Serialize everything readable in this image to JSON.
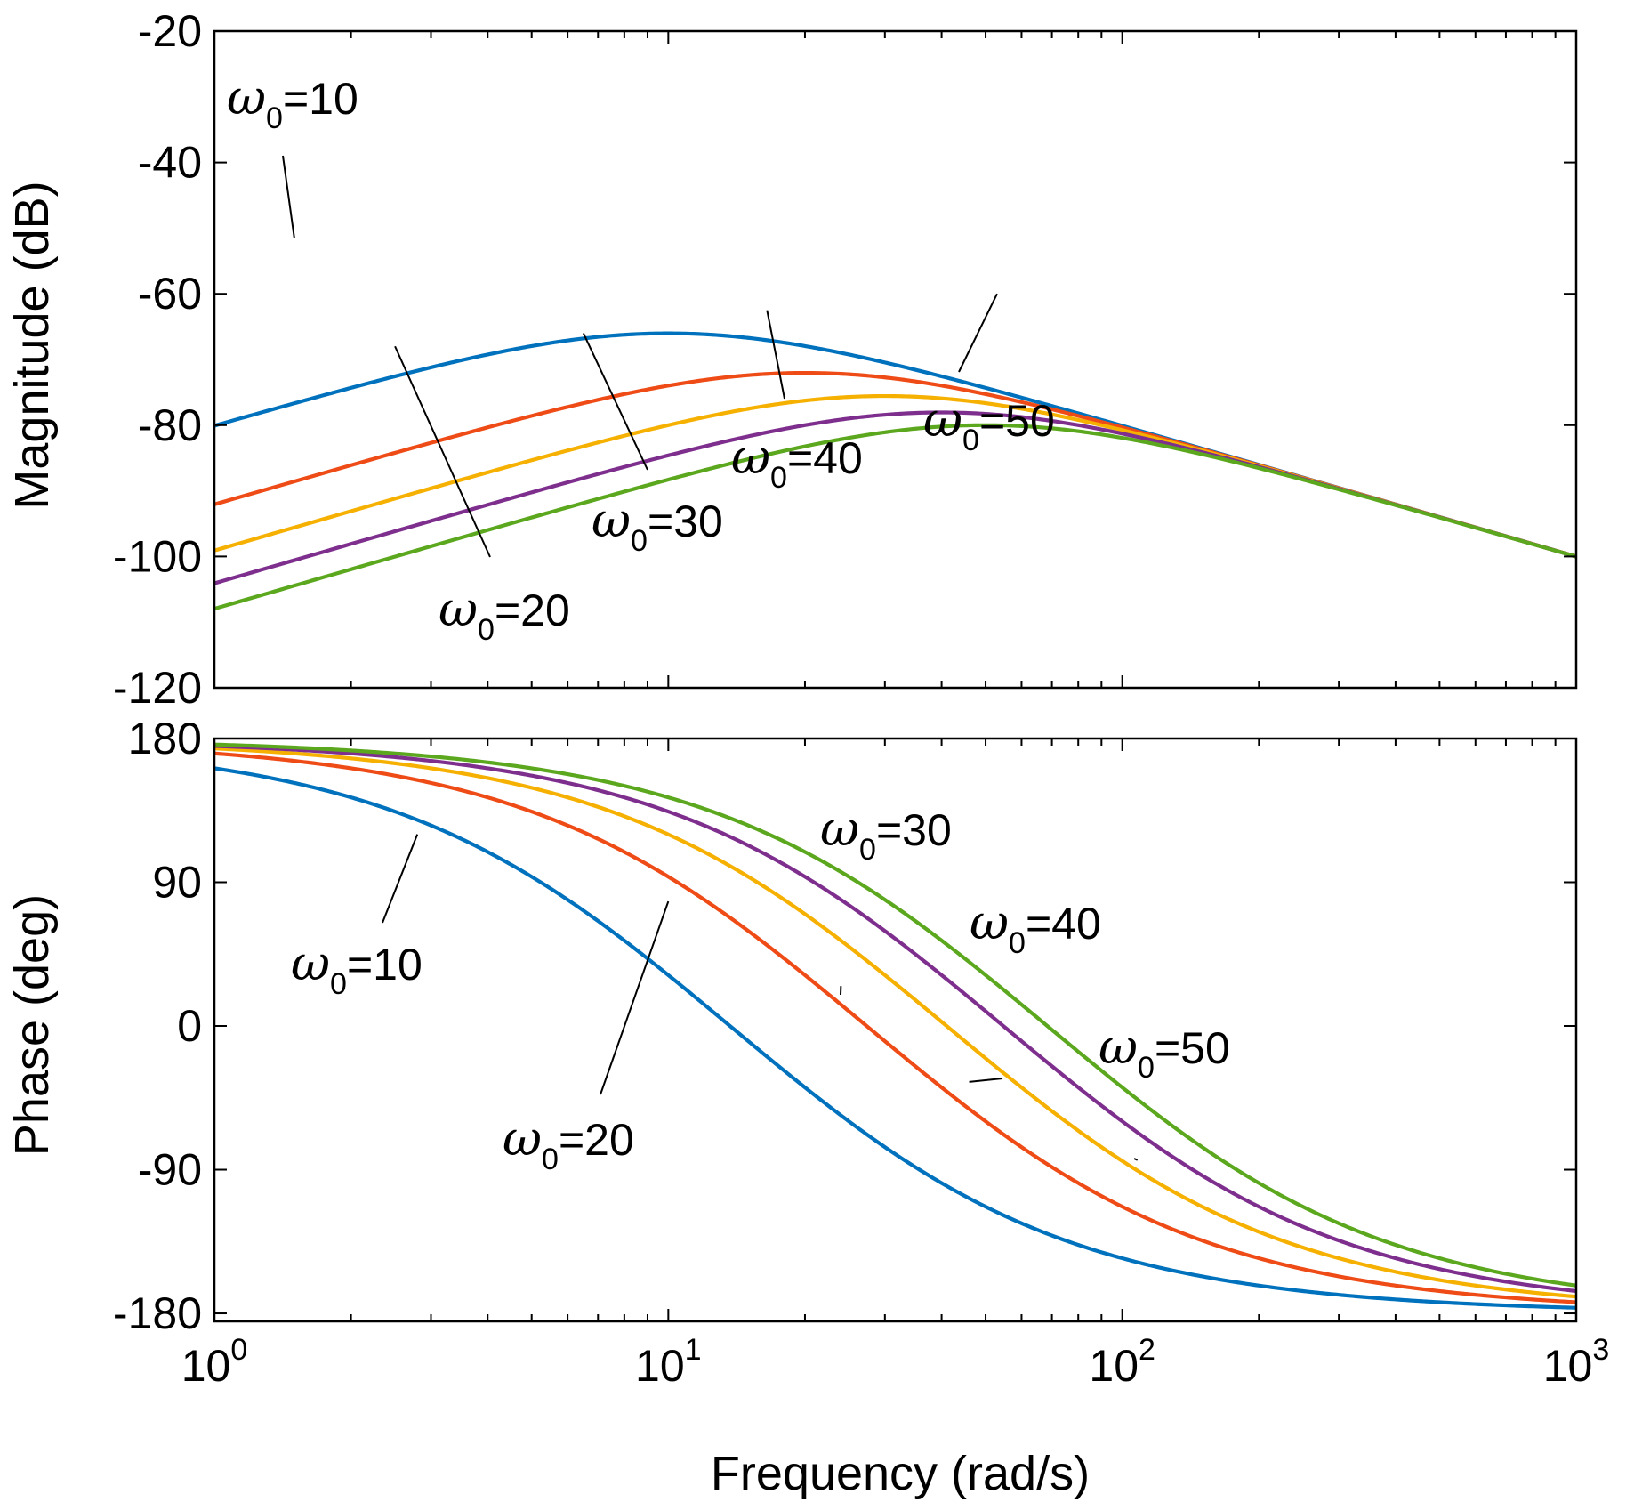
{
  "chart_data": [
    {
      "type": "line",
      "id": "magnitude",
      "title": "",
      "xlabel": "",
      "ylabel": "Magnitude (dB)",
      "xscale": "log",
      "xlim": [
        1,
        1000
      ],
      "ylim": [
        -120,
        -20
      ],
      "yticks": [
        -120,
        -100,
        -80,
        -60,
        -40,
        -20
      ],
      "ytick_labels": [
        "-120",
        "-100",
        "-80",
        "-60",
        "-40",
        "-20"
      ],
      "grid": false,
      "series": [
        {
          "name": "ω0=10",
          "omega0": 10,
          "color": "#0072BD"
        },
        {
          "name": "ω0=20",
          "omega0": 20,
          "color": "#EE4B16"
        },
        {
          "name": "ω0=30",
          "omega0": 30,
          "color": "#F5B000"
        },
        {
          "name": "ω0=40",
          "omega0": 40,
          "color": "#7E2F8E"
        },
        {
          "name": "ω0=50",
          "omega0": 50,
          "color": "#5BA71E"
        }
      ],
      "annotations": [
        {
          "symbol": "ω",
          "sub": "0",
          "text": "=10",
          "target_x": 1.5,
          "target_y": -51.5
        },
        {
          "symbol": "ω",
          "sub": "0",
          "text": "=20",
          "target_x": 2.5,
          "target_y": -68
        },
        {
          "symbol": "ω",
          "sub": "0",
          "text": "=30",
          "target_x": 6.5,
          "target_y": -66
        },
        {
          "symbol": "ω",
          "sub": "0",
          "text": "=40",
          "target_x": 16.5,
          "target_y": -62.5
        },
        {
          "symbol": "ω",
          "sub": "0",
          "text": "=50",
          "target_x": 53,
          "target_y": -60
        }
      ]
    },
    {
      "type": "line",
      "id": "phase",
      "title": "",
      "xlabel": "Frequency  (rad/s)",
      "ylabel": "Phase (deg)",
      "xscale": "log",
      "xlim": [
        1,
        1000
      ],
      "ylim": [
        -185,
        180
      ],
      "yticks": [
        -180,
        -90,
        0,
        90,
        180
      ],
      "ytick_labels": [
        "-180",
        "-90",
        "0",
        "90",
        "180"
      ],
      "xticks": [
        1,
        10,
        100,
        1000
      ],
      "xtick_labels": [
        {
          "base": "10",
          "exp": "0"
        },
        {
          "base": "10",
          "exp": "1"
        },
        {
          "base": "10",
          "exp": "2"
        },
        {
          "base": "10",
          "exp": "3"
        }
      ],
      "grid": false,
      "series": [
        {
          "name": "ω0=10",
          "omega0": 10,
          "color": "#0072BD"
        },
        {
          "name": "ω0=20",
          "omega0": 20,
          "color": "#EE4B16"
        },
        {
          "name": "ω0=30",
          "omega0": 30,
          "color": "#F5B000"
        },
        {
          "name": "ω0=40",
          "omega0": 40,
          "color": "#7E2F8E"
        },
        {
          "name": "ω0=50",
          "omega0": 50,
          "color": "#5BA71E"
        }
      ],
      "annotations": [
        {
          "symbol": "ω",
          "sub": "0",
          "text": "=10",
          "target_x": 2.8,
          "target_y": 120
        },
        {
          "symbol": "ω",
          "sub": "0",
          "text": "=20",
          "target_x": 10,
          "target_y": 78
        },
        {
          "symbol": "ω",
          "sub": "0",
          "text": "=30",
          "target_x": 24,
          "target_y": 25
        },
        {
          "symbol": "ω",
          "sub": "0",
          "text": "=40",
          "target_x": 46,
          "target_y": -35
        },
        {
          "symbol": "ω",
          "sub": "0",
          "text": "=50",
          "target_x": 108,
          "target_y": -84
        }
      ]
    }
  ]
}
